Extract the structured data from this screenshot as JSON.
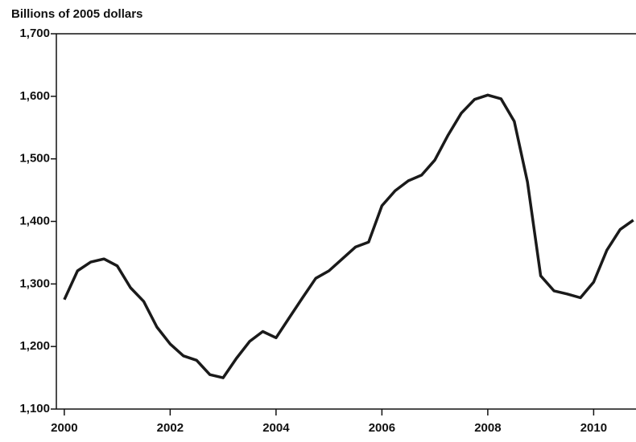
{
  "chart_data": {
    "type": "line",
    "y_axis_label": "Billions of 2005 dollars",
    "x": [
      2000,
      2000.25,
      2000.5,
      2000.75,
      2001,
      2001.25,
      2001.5,
      2001.75,
      2002,
      2002.25,
      2002.5,
      2002.75,
      2003,
      2003.25,
      2003.5,
      2003.75,
      2004,
      2004.25,
      2004.5,
      2004.75,
      2005,
      2005.25,
      2005.5,
      2005.75,
      2006,
      2006.25,
      2006.5,
      2006.75,
      2007,
      2007.25,
      2007.5,
      2007.75,
      2008,
      2008.25,
      2008.5,
      2008.75,
      2009,
      2009.25,
      2009.5,
      2009.75,
      2010,
      2010.25,
      2010.5,
      2010.75
    ],
    "values": [
      1275,
      1321,
      1335,
      1340,
      1329,
      1294,
      1272,
      1231,
      1204,
      1185,
      1178,
      1155,
      1150,
      1181,
      1208,
      1224,
      1214,
      1246,
      1278,
      1309,
      1321,
      1340,
      1359,
      1367,
      1425,
      1449,
      1465,
      1474,
      1498,
      1538,
      1573,
      1595,
      1602,
      1596,
      1560,
      1463,
      1313,
      1289,
      1284,
      1278,
      1303,
      1354,
      1387,
      1402
    ],
    "color": "#1a1a1a",
    "xlim": [
      1999.85,
      2010.8
    ],
    "xticks": [
      2000,
      2002,
      2004,
      2006,
      2008,
      2010
    ],
    "ylim": [
      1100,
      1700
    ],
    "yticks": [
      {
        "value": 1100,
        "label": "1,100"
      },
      {
        "value": 1200,
        "label": "1,200"
      },
      {
        "value": 1300,
        "label": "1,300"
      },
      {
        "value": 1400,
        "label": "1,400"
      },
      {
        "value": 1500,
        "label": "1,500"
      },
      {
        "value": 1600,
        "label": "1,600"
      },
      {
        "value": 1700,
        "label": "1,700"
      }
    ]
  }
}
